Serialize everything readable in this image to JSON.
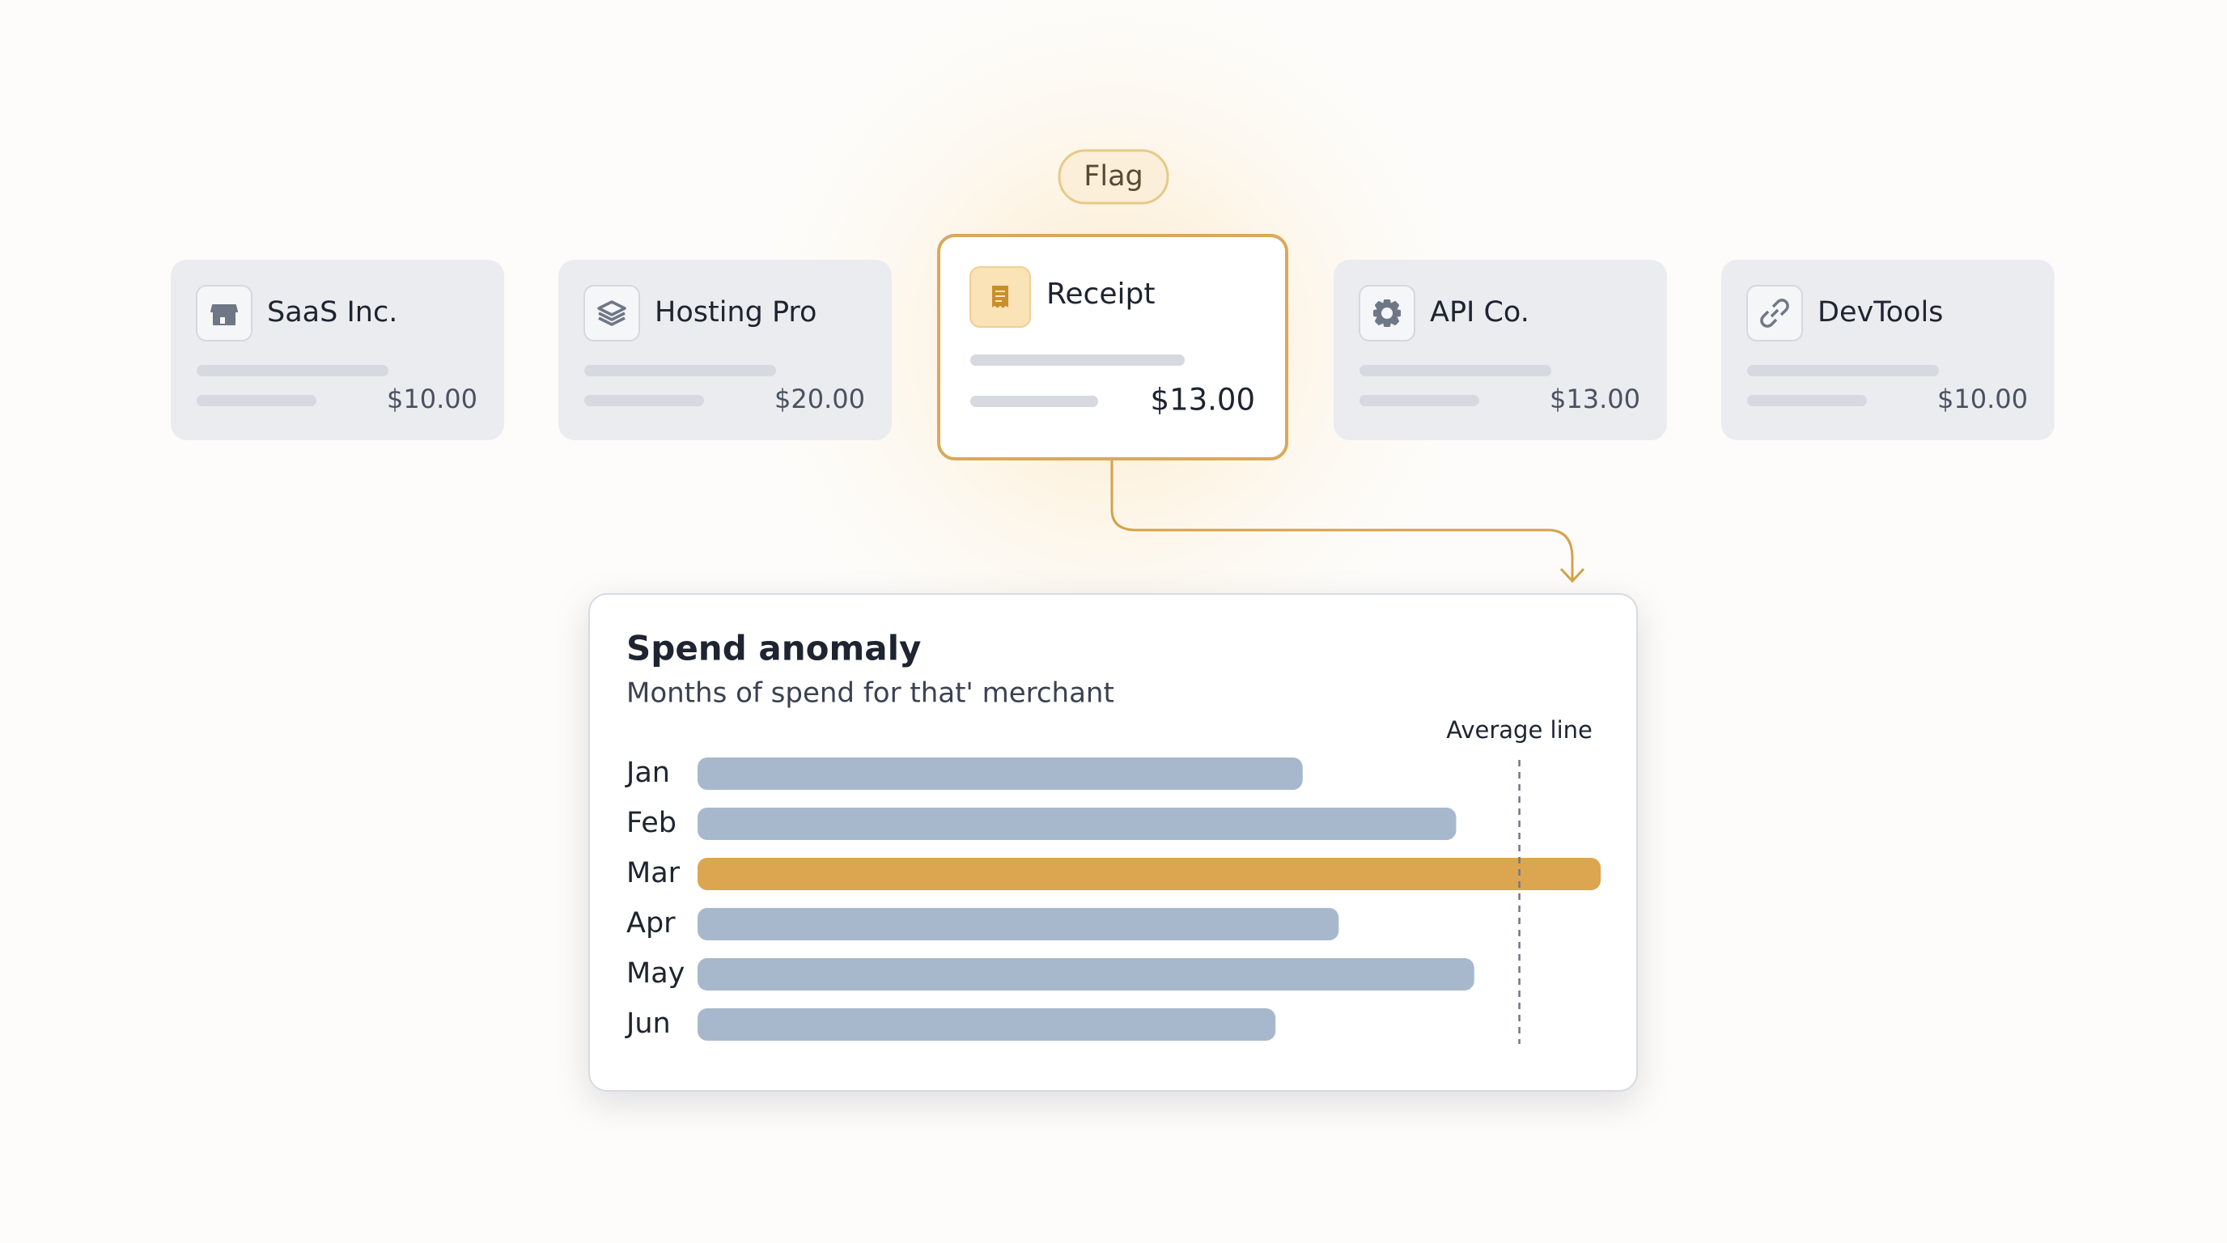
{
  "flag": "Flag",
  "cards": [
    {
      "name": "SaaS Inc.",
      "amount": "$10.00"
    },
    {
      "name": "Hosting Pro",
      "amount": "$20.00"
    },
    {
      "name": "Receipt",
      "amount": "$13.00",
      "selected": true
    },
    {
      "name": "API Co.",
      "amount": "$13.00"
    },
    {
      "name": "DevTools",
      "amount": "$10.00"
    }
  ],
  "chart_data": {
    "type": "bar",
    "orientation": "horizontal",
    "title": "Spend anomaly",
    "subtitle": "Months of spend for that' merchant",
    "categories": [
      "Jan",
      "Feb",
      "Mar",
      "Apr",
      "May",
      "Jun"
    ],
    "values": [
      67,
      84,
      100,
      71,
      86,
      64
    ],
    "colors": [
      "#a8b8cc",
      "#a8b8cc",
      "#dca550",
      "#a8b8cc",
      "#a8b8cc",
      "#a8b8cc"
    ],
    "xlim": [
      0,
      100
    ],
    "average": {
      "label": "Average line",
      "value": 91
    }
  }
}
